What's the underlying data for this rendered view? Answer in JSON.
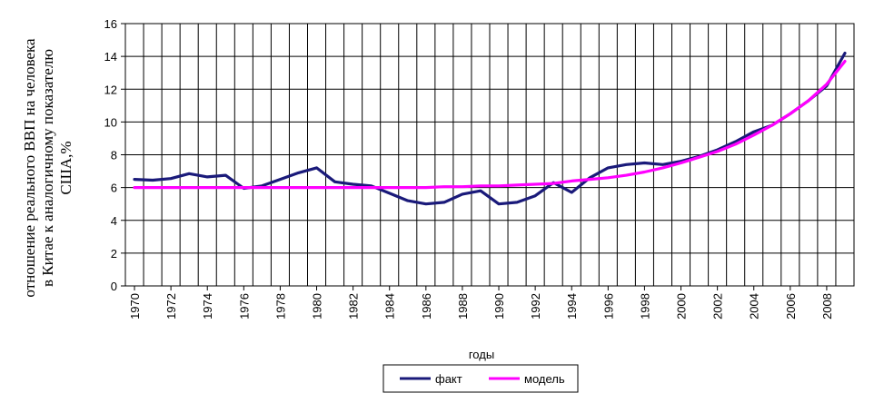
{
  "chart_data": {
    "type": "line",
    "xlabel": "годы",
    "ylabel_lines": [
      "отношение реального ВВП на человека",
      "в Китае к аналогичному показателю",
      "США,%"
    ],
    "ylim": [
      0,
      16
    ],
    "yticks": [
      0,
      2,
      4,
      6,
      8,
      10,
      12,
      14,
      16
    ],
    "xlim": [
      1970,
      2009
    ],
    "xticks": [
      1970,
      1972,
      1974,
      1976,
      1978,
      1980,
      1982,
      1984,
      1986,
      1988,
      1990,
      1992,
      1994,
      1996,
      1998,
      2000,
      2002,
      2004,
      2006,
      2008
    ],
    "grid": true,
    "legend_position": "bottom-center",
    "series": [
      {
        "name": "факт",
        "color": "#1a1a7a",
        "x": [
          1970,
          1971,
          1972,
          1973,
          1974,
          1975,
          1976,
          1977,
          1978,
          1979,
          1980,
          1981,
          1982,
          1983,
          1984,
          1985,
          1986,
          1987,
          1988,
          1989,
          1990,
          1991,
          1992,
          1993,
          1994,
          1995,
          1996,
          1997,
          1998,
          1999,
          2000,
          2001,
          2002,
          2003,
          2004,
          2005,
          2006,
          2007,
          2008,
          2009
        ],
        "values": [
          6.5,
          6.45,
          6.55,
          6.85,
          6.65,
          6.75,
          5.95,
          6.1,
          6.5,
          6.9,
          7.2,
          6.35,
          6.2,
          6.1,
          5.65,
          5.2,
          5.0,
          5.1,
          5.6,
          5.8,
          5.0,
          5.1,
          5.5,
          6.3,
          5.7,
          6.6,
          7.2,
          7.4,
          7.5,
          7.4,
          7.6,
          7.9,
          8.3,
          8.8,
          9.4,
          9.8,
          10.5,
          11.3,
          12.2,
          14.2
        ]
      },
      {
        "name": "модель",
        "color": "#ff00ff",
        "x": [
          1970,
          1971,
          1972,
          1973,
          1974,
          1975,
          1976,
          1977,
          1978,
          1979,
          1980,
          1981,
          1982,
          1983,
          1984,
          1985,
          1986,
          1987,
          1988,
          1989,
          1990,
          1991,
          1992,
          1993,
          1994,
          1995,
          1996,
          1997,
          1998,
          1999,
          2000,
          2001,
          2002,
          2003,
          2004,
          2005,
          2006,
          2007,
          2008,
          2009
        ],
        "values": [
          6.0,
          6.0,
          6.0,
          6.0,
          6.0,
          6.0,
          6.0,
          6.0,
          6.0,
          6.0,
          6.0,
          6.0,
          6.0,
          6.0,
          6.0,
          6.0,
          6.0,
          6.05,
          6.05,
          6.1,
          6.1,
          6.15,
          6.2,
          6.25,
          6.4,
          6.5,
          6.6,
          6.75,
          6.95,
          7.2,
          7.5,
          7.85,
          8.2,
          8.65,
          9.2,
          9.8,
          10.5,
          11.3,
          12.3,
          13.7
        ]
      }
    ]
  }
}
